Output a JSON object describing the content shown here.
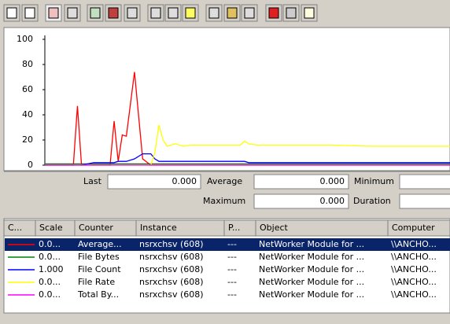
{
  "chart_data": {
    "type": "line",
    "x": [
      0,
      7,
      8,
      9,
      12,
      16,
      17,
      18,
      19,
      20,
      22,
      24,
      26,
      27,
      28,
      29,
      30,
      32,
      34,
      36,
      40,
      48,
      49,
      50,
      52,
      60,
      70,
      80,
      90,
      100
    ],
    "xlim": [
      0,
      100
    ],
    "ylim": [
      0,
      100
    ],
    "yticks": [
      0,
      20,
      40,
      60,
      80,
      100
    ],
    "series": [
      {
        "name": "Average...",
        "color": "#ff0000",
        "values": [
          0,
          0,
          47,
          0,
          0,
          0,
          35,
          3,
          24,
          23,
          74,
          5,
          0,
          0,
          0,
          0,
          0,
          0,
          0,
          0,
          0,
          0,
          0,
          0,
          0,
          0,
          0,
          0,
          0,
          0
        ]
      },
      {
        "name": "File Bytes",
        "color": "#008000",
        "values": [
          1,
          1,
          1,
          1,
          1,
          1,
          1,
          1,
          1,
          1,
          1,
          1,
          1,
          1,
          1,
          1,
          1,
          1,
          1,
          1,
          1,
          1,
          1,
          1,
          1,
          1,
          1,
          1,
          1,
          1
        ]
      },
      {
        "name": "File Count",
        "color": "#0000ff",
        "values": [
          0,
          0,
          0,
          0,
          2,
          2,
          2,
          3,
          3,
          3,
          5,
          9,
          9,
          5,
          3,
          3,
          3,
          3,
          3,
          3,
          3,
          3,
          3,
          2,
          2,
          2,
          2,
          2,
          2,
          2
        ]
      },
      {
        "name": "File Rate",
        "color": "#ffff00",
        "values": [
          0,
          0,
          0,
          0,
          0,
          0,
          0,
          0,
          0,
          0,
          0,
          0,
          0,
          10,
          32,
          20,
          15,
          17,
          15,
          16,
          16,
          16,
          19,
          17,
          16,
          16,
          16,
          15,
          15,
          15
        ]
      },
      {
        "name": "Total By...",
        "color": "#ff00ff",
        "values": [
          0,
          0,
          0,
          0,
          0,
          0,
          0,
          0,
          0,
          0,
          0,
          0,
          0,
          0,
          0,
          0,
          0,
          0,
          0,
          0,
          0,
          0,
          0,
          0,
          0,
          0,
          0,
          0,
          0,
          0
        ]
      }
    ]
  },
  "stats": {
    "last_label": "Last",
    "last": "0.000",
    "average_label": "Average",
    "average": "0.000",
    "minimum_label": "Minimum",
    "maximum_label": "Maximum",
    "maximum": "0.000",
    "duration_label": "Duration"
  },
  "table": {
    "headers": [
      "C...",
      "Scale",
      "Counter",
      "Instance",
      "P...",
      "Object",
      "Computer"
    ],
    "rows": [
      [
        "0.0...",
        "Average...",
        "nsrxchsv (608)",
        "---",
        "NetWorker Module for ...",
        "\\\\ANCHO..."
      ],
      [
        "0.0...",
        "File Bytes",
        "nsrxchsv (608)",
        "---",
        "NetWorker Module for ...",
        "\\\\ANCHO..."
      ],
      [
        "1.000",
        "File Count",
        "nsrxchsv (608)",
        "---",
        "NetWorker Module for ...",
        "\\\\ANCHO..."
      ],
      [
        "0.0...",
        "File Rate",
        "nsrxchsv (608)",
        "---",
        "NetWorker Module for ...",
        "\\\\ANCHO..."
      ],
      [
        "0.0...",
        "Total By...",
        "nsrxchsv (608)",
        "---",
        "NetWorker Module for ...",
        "\\\\ANCHO..."
      ]
    ]
  }
}
